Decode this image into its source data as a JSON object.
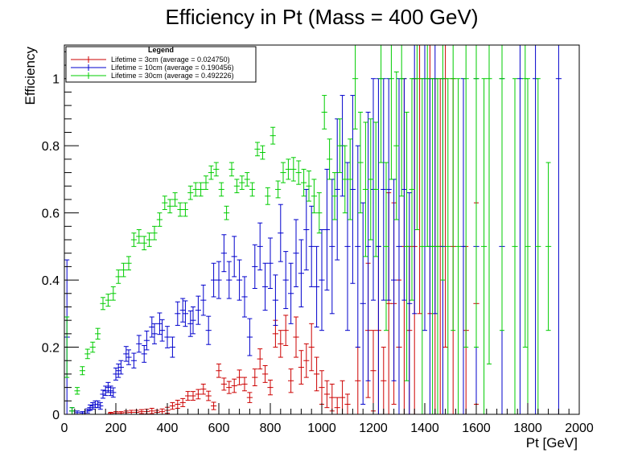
{
  "chart_data": {
    "type": "scatter",
    "title": "Efficiency in Pt (Mass = 400 GeV)",
    "xlabel": "Pt [GeV]",
    "ylabel": "Efficiency",
    "xlim": [
      0,
      2000
    ],
    "ylim": [
      0,
      1.1
    ],
    "xticks": [
      "0",
      "200",
      "400",
      "600",
      "800",
      "1000",
      "1200",
      "1400",
      "1600",
      "1800",
      "2000"
    ],
    "yticks": [
      "0",
      "0.2",
      "0.4",
      "0.6",
      "0.8",
      "1"
    ],
    "grid": false,
    "legend": {
      "title": "Legend",
      "placement": "top-left",
      "entries": [
        "Lifetime = 3cm (average = 0.024750)",
        "Lifetime = 10cm (average = 0.190456)",
        "Lifetime = 30cm (average = 0.492226)"
      ]
    },
    "series": [
      {
        "name": "Lifetime = 3cm (average = 0.024750)",
        "color": "#cc0000",
        "points": [
          [
            180,
            0.003,
            0.003
          ],
          [
            200,
            0.004,
            0.004
          ],
          [
            220,
            0.004,
            0.004
          ],
          [
            240,
            0.005,
            0.005
          ],
          [
            260,
            0.006,
            0.006
          ],
          [
            280,
            0.006,
            0.006
          ],
          [
            300,
            0.008,
            0.006
          ],
          [
            320,
            0.008,
            0.007
          ],
          [
            340,
            0.01,
            0.008
          ],
          [
            360,
            0.006,
            0.006
          ],
          [
            380,
            0.008,
            0.008
          ],
          [
            400,
            0.012,
            0.009
          ],
          [
            420,
            0.025,
            0.01
          ],
          [
            440,
            0.03,
            0.012
          ],
          [
            460,
            0.035,
            0.012
          ],
          [
            480,
            0.055,
            0.013
          ],
          [
            500,
            0.055,
            0.013
          ],
          [
            520,
            0.06,
            0.014
          ],
          [
            540,
            0.075,
            0.015
          ],
          [
            560,
            0.055,
            0.014
          ],
          [
            580,
            0.025,
            0.011
          ],
          [
            600,
            0.13,
            0.02
          ],
          [
            620,
            0.09,
            0.018
          ],
          [
            640,
            0.08,
            0.018
          ],
          [
            660,
            0.085,
            0.02
          ],
          [
            680,
            0.11,
            0.022
          ],
          [
            700,
            0.09,
            0.02
          ],
          [
            720,
            0.05,
            0.015
          ],
          [
            740,
            0.11,
            0.025
          ],
          [
            760,
            0.165,
            0.03
          ],
          [
            780,
            0.12,
            0.025
          ],
          [
            800,
            0.08,
            0.022
          ],
          [
            820,
            0.24,
            0.04
          ],
          [
            840,
            0.21,
            0.04
          ],
          [
            860,
            0.25,
            0.045
          ],
          [
            880,
            0.1,
            0.035
          ],
          [
            900,
            0.23,
            0.06
          ],
          [
            920,
            0.14,
            0.05
          ],
          [
            940,
            0.16,
            0.05
          ],
          [
            960,
            0.2,
            0.07
          ],
          [
            980,
            0.12,
            0.05
          ],
          [
            1000,
            0.08,
            0.05
          ],
          [
            1020,
            0.06,
            0.04
          ],
          [
            1040,
            0.05,
            0.04
          ],
          [
            1060,
            0.02,
            0.03
          ],
          [
            1080,
            0.05,
            0.05
          ],
          [
            1100,
            0.03,
            0.03
          ],
          [
            1140,
            0.1,
            0.1
          ],
          [
            1180,
            0.25,
            0.2
          ],
          [
            1200,
            0.13,
            0.12
          ],
          [
            1220,
            0.25,
            0.25
          ],
          [
            1240,
            0.1,
            0.1
          ],
          [
            1260,
            0.33,
            0.33
          ],
          [
            1280,
            0.33,
            0.3
          ],
          [
            1300,
            0.2,
            0.2
          ],
          [
            1320,
            0.5,
            0.5
          ],
          [
            1340,
            0.25,
            0.25
          ],
          [
            1360,
            0.5,
            0.5
          ],
          [
            1380,
            1.0,
            0.7
          ],
          [
            1420,
            1.0,
            0.7
          ],
          [
            1440,
            0.5,
            0.5
          ],
          [
            1460,
            0.5,
            0.5
          ],
          [
            1480,
            1.0,
            0.8
          ],
          [
            1510,
            0.5,
            0.5
          ],
          [
            1560,
            0.25,
            0.25
          ],
          [
            1600,
            0.33,
            0.3
          ]
        ]
      },
      {
        "name": "Lifetime = 10cm (average = 0.190456)",
        "color": "#0000cc",
        "points": [
          [
            10,
            0.23,
            0.23
          ],
          [
            30,
            0.01,
            0.01
          ],
          [
            50,
            0.005,
            0.005
          ],
          [
            70,
            0.004,
            0.004
          ],
          [
            90,
            0.01,
            0.006
          ],
          [
            100,
            0.02,
            0.008
          ],
          [
            110,
            0.025,
            0.01
          ],
          [
            120,
            0.03,
            0.01
          ],
          [
            130,
            0.03,
            0.01
          ],
          [
            140,
            0.025,
            0.01
          ],
          [
            150,
            0.06,
            0.012
          ],
          [
            160,
            0.07,
            0.014
          ],
          [
            170,
            0.08,
            0.015
          ],
          [
            180,
            0.07,
            0.014
          ],
          [
            190,
            0.065,
            0.014
          ],
          [
            200,
            0.12,
            0.018
          ],
          [
            210,
            0.13,
            0.02
          ],
          [
            220,
            0.14,
            0.02
          ],
          [
            240,
            0.18,
            0.022
          ],
          [
            250,
            0.17,
            0.022
          ],
          [
            270,
            0.16,
            0.022
          ],
          [
            290,
            0.21,
            0.025
          ],
          [
            310,
            0.18,
            0.025
          ],
          [
            320,
            0.22,
            0.028
          ],
          [
            340,
            0.26,
            0.03
          ],
          [
            350,
            0.24,
            0.03
          ],
          [
            370,
            0.27,
            0.032
          ],
          [
            380,
            0.25,
            0.032
          ],
          [
            400,
            0.23,
            0.032
          ],
          [
            420,
            0.2,
            0.03
          ],
          [
            440,
            0.3,
            0.035
          ],
          [
            460,
            0.31,
            0.035
          ],
          [
            470,
            0.3,
            0.038
          ],
          [
            490,
            0.27,
            0.038
          ],
          [
            500,
            0.28,
            0.04
          ],
          [
            520,
            0.31,
            0.042
          ],
          [
            540,
            0.34,
            0.045
          ],
          [
            560,
            0.25,
            0.042
          ],
          [
            580,
            0.4,
            0.05
          ],
          [
            600,
            0.4,
            0.055
          ],
          [
            620,
            0.48,
            0.055
          ],
          [
            640,
            0.4,
            0.055
          ],
          [
            660,
            0.47,
            0.06
          ],
          [
            680,
            0.4,
            0.06
          ],
          [
            700,
            0.35,
            0.06
          ],
          [
            720,
            0.23,
            0.055
          ],
          [
            740,
            0.44,
            0.065
          ],
          [
            760,
            0.5,
            0.07
          ],
          [
            780,
            0.38,
            0.07
          ],
          [
            800,
            0.45,
            0.075
          ],
          [
            820,
            0.34,
            0.075
          ],
          [
            840,
            0.54,
            0.085
          ],
          [
            860,
            0.4,
            0.085
          ],
          [
            880,
            0.36,
            0.09
          ],
          [
            900,
            0.48,
            0.1
          ],
          [
            920,
            0.42,
            0.1
          ],
          [
            940,
            0.55,
            0.12
          ],
          [
            960,
            0.5,
            0.12
          ],
          [
            980,
            0.38,
            0.12
          ],
          [
            1000,
            0.4,
            0.15
          ],
          [
            1020,
            0.55,
            0.18
          ],
          [
            1040,
            0.5,
            0.2
          ],
          [
            1060,
            0.67,
            0.21
          ],
          [
            1080,
            0.8,
            0.15
          ],
          [
            1100,
            0.5,
            0.25
          ],
          [
            1120,
            0.67,
            0.28
          ],
          [
            1140,
            0.5,
            0.3
          ],
          [
            1160,
            0.33,
            0.3
          ],
          [
            1180,
            0.5,
            0.4
          ],
          [
            1200,
            0.67,
            0.33
          ],
          [
            1220,
            0.5,
            0.5
          ],
          [
            1240,
            0.67,
            0.33
          ],
          [
            1260,
            0.67,
            0.33
          ],
          [
            1280,
            0.4,
            0.3
          ],
          [
            1300,
            0.5,
            0.5
          ],
          [
            1320,
            0.67,
            0.33
          ],
          [
            1340,
            0.33,
            0.33
          ],
          [
            1360,
            1.0,
            0.7
          ],
          [
            1400,
            1.0,
            0.75
          ],
          [
            1420,
            0.5,
            0.5
          ],
          [
            1440,
            1.0,
            0.7
          ],
          [
            1470,
            0.5,
            0.5
          ],
          [
            1550,
            0.5,
            0.5
          ],
          [
            1600,
            0.5,
            0.5
          ],
          [
            1700,
            0.5,
            0.5
          ],
          [
            1770,
            1.0,
            1.0
          ],
          [
            1830,
            1.0,
            1.0
          ],
          [
            1920,
            1.0,
            1.0
          ]
        ]
      },
      {
        "name": "Lifetime = 30cm (average = 0.492226)",
        "color": "#00cc00",
        "points": [
          [
            10,
            0.2,
            0.09
          ],
          [
            30,
            0.01,
            0.01
          ],
          [
            50,
            0.07,
            0.01
          ],
          [
            70,
            0.13,
            0.012
          ],
          [
            90,
            0.18,
            0.014
          ],
          [
            110,
            0.2,
            0.015
          ],
          [
            130,
            0.24,
            0.016
          ],
          [
            150,
            0.33,
            0.018
          ],
          [
            170,
            0.34,
            0.018
          ],
          [
            190,
            0.36,
            0.02
          ],
          [
            210,
            0.41,
            0.02
          ],
          [
            230,
            0.43,
            0.02
          ],
          [
            250,
            0.45,
            0.02
          ],
          [
            270,
            0.52,
            0.02
          ],
          [
            290,
            0.53,
            0.02
          ],
          [
            310,
            0.51,
            0.02
          ],
          [
            330,
            0.52,
            0.02
          ],
          [
            350,
            0.54,
            0.02
          ],
          [
            370,
            0.58,
            0.02
          ],
          [
            390,
            0.63,
            0.02
          ],
          [
            410,
            0.62,
            0.02
          ],
          [
            430,
            0.64,
            0.02
          ],
          [
            450,
            0.61,
            0.02
          ],
          [
            470,
            0.61,
            0.02
          ],
          [
            490,
            0.66,
            0.02
          ],
          [
            510,
            0.67,
            0.02
          ],
          [
            530,
            0.67,
            0.02
          ],
          [
            550,
            0.69,
            0.02
          ],
          [
            570,
            0.72,
            0.02
          ],
          [
            590,
            0.73,
            0.02
          ],
          [
            610,
            0.67,
            0.02
          ],
          [
            630,
            0.6,
            0.02
          ],
          [
            650,
            0.73,
            0.02
          ],
          [
            670,
            0.68,
            0.02
          ],
          [
            690,
            0.69,
            0.02
          ],
          [
            710,
            0.7,
            0.02
          ],
          [
            730,
            0.67,
            0.02
          ],
          [
            750,
            0.79,
            0.02
          ],
          [
            770,
            0.78,
            0.02
          ],
          [
            790,
            0.65,
            0.025
          ],
          [
            810,
            0.83,
            0.025
          ],
          [
            830,
            0.67,
            0.025
          ],
          [
            850,
            0.72,
            0.03
          ],
          [
            870,
            0.73,
            0.03
          ],
          [
            890,
            0.73,
            0.035
          ],
          [
            910,
            0.72,
            0.035
          ],
          [
            930,
            0.69,
            0.04
          ],
          [
            950,
            0.68,
            0.045
          ],
          [
            970,
            0.65,
            0.05
          ],
          [
            990,
            0.6,
            0.06
          ],
          [
            1010,
            0.9,
            0.05
          ],
          [
            1030,
            0.76,
            0.06
          ],
          [
            1050,
            0.65,
            0.07
          ],
          [
            1070,
            0.8,
            0.08
          ],
          [
            1090,
            0.7,
            0.1
          ],
          [
            1110,
            0.7,
            0.12
          ],
          [
            1130,
            1.0,
            0.15
          ],
          [
            1150,
            0.75,
            0.15
          ],
          [
            1170,
            0.67,
            0.2
          ],
          [
            1190,
            0.7,
            0.18
          ],
          [
            1210,
            0.67,
            0.2
          ],
          [
            1230,
            1.0,
            0.25
          ],
          [
            1250,
            0.5,
            0.25
          ],
          [
            1270,
            1.0,
            0.3
          ],
          [
            1290,
            0.8,
            0.22
          ],
          [
            1310,
            1.0,
            0.35
          ],
          [
            1330,
            0.5,
            0.4
          ],
          [
            1350,
            0.67,
            0.33
          ],
          [
            1370,
            1.0,
            0.45
          ],
          [
            1390,
            0.5,
            0.5
          ],
          [
            1410,
            1.0,
            0.5
          ],
          [
            1430,
            0.5,
            0.5
          ],
          [
            1450,
            0.5,
            0.5
          ],
          [
            1470,
            1.0,
            0.6
          ],
          [
            1490,
            0.5,
            0.5
          ],
          [
            1510,
            1.0,
            0.75
          ],
          [
            1530,
            0.5,
            0.5
          ],
          [
            1560,
            1.0,
            0.8
          ],
          [
            1600,
            1.0,
            0.8
          ],
          [
            1630,
            0.5,
            0.5
          ],
          [
            1650,
            1.0,
            0.85
          ],
          [
            1700,
            1.0,
            0.75
          ],
          [
            1750,
            0.5,
            0.5
          ],
          [
            1790,
            1.0,
            0.8
          ],
          [
            1800,
            0.5,
            0.5
          ],
          [
            1840,
            0.5,
            0.5
          ],
          [
            1880,
            0.5,
            0.25
          ]
        ]
      }
    ]
  }
}
